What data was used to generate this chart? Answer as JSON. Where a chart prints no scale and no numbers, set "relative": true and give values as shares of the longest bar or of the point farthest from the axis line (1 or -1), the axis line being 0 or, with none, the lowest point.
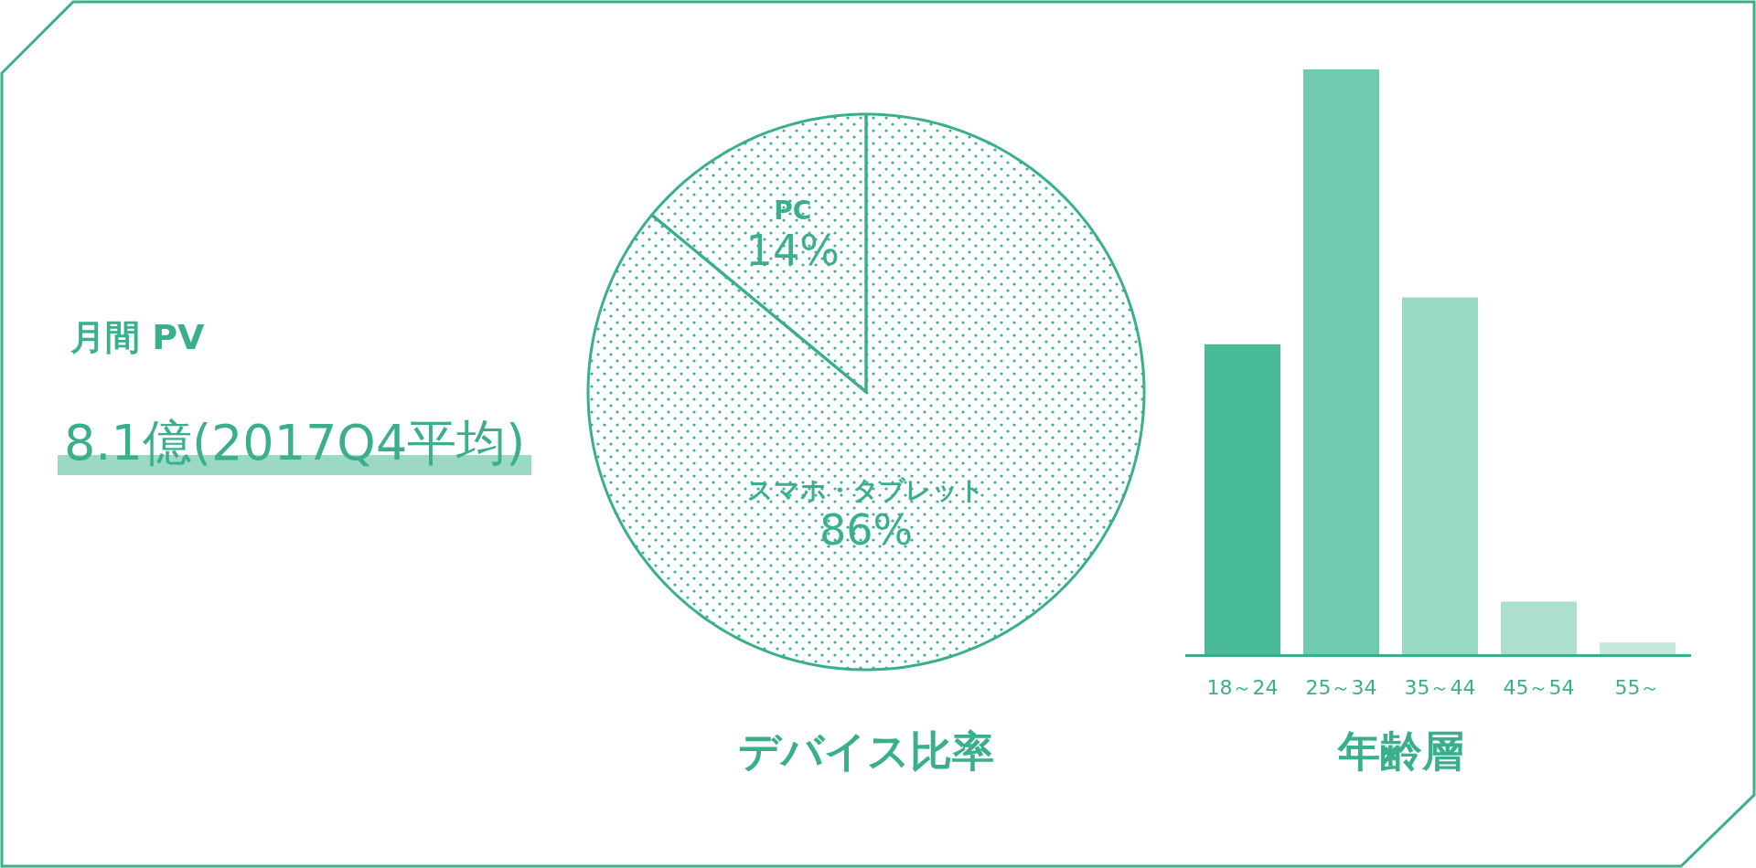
{
  "chart_data": [
    {
      "type": "other",
      "title": "月間 PV",
      "annotations": [
        "8.1億(2017Q4平均)"
      ]
    },
    {
      "type": "pie",
      "title": "デバイス比率",
      "categories": [
        "PC",
        "スマホ・タブレット"
      ],
      "values": [
        14,
        86
      ],
      "colors": [
        "#3aaf8b",
        "#3aaf8b"
      ],
      "value_labels": [
        "14%",
        "86%"
      ]
    },
    {
      "type": "bar",
      "title": "年齢層",
      "relative": true,
      "categories": [
        "18～24",
        "25～34",
        "35～44",
        "45～54",
        "55～"
      ],
      "values": [
        0.53,
        1,
        0.61,
        0.09,
        0.02
      ],
      "colors": [
        "#49bb99",
        "#70cab0",
        "#99d9c5",
        "#acdfd0",
        "#c4e9de"
      ]
    }
  ]
}
